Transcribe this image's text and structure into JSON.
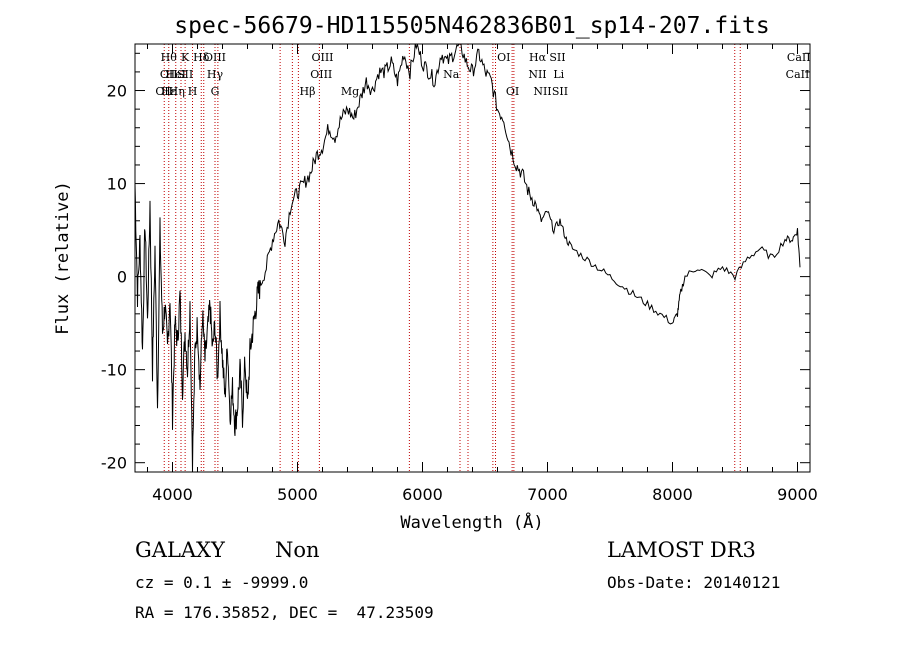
{
  "chart_data": {
    "type": "line",
    "title": "spec-56679-HD115505N462836B01_sp14-207.fits",
    "xlabel": "Wavelength (Å)",
    "ylabel": "Flux (relative)",
    "xlim": [
      3700,
      9100
    ],
    "ylim": [
      -21,
      25
    ],
    "xticks": [
      4000,
      5000,
      6000,
      7000,
      8000,
      9000
    ],
    "yticks": [
      -20,
      -10,
      0,
      10,
      20
    ],
    "grid": false,
    "series": [
      {
        "x": [
          3700,
          3720,
          3740,
          3760,
          3780,
          3800,
          3820,
          3840,
          3860,
          3880,
          3900,
          3920,
          3940,
          3960,
          3980,
          4000,
          4020,
          4040,
          4060,
          4080,
          4100,
          4120,
          4140,
          4160,
          4180,
          4200,
          4220,
          4240,
          4260,
          4280,
          4300,
          4320,
          4340,
          4360,
          4380,
          4400,
          4420,
          4440,
          4460,
          4480,
          4500,
          4520,
          4540,
          4560,
          4580,
          4600,
          4620,
          4640,
          4660,
          4680,
          4700,
          4750,
          4800,
          4850,
          4900,
          4950,
          5000,
          5050,
          5100,
          5150,
          5200,
          5250,
          5300,
          5350,
          5400,
          5450,
          5500,
          5550,
          5600,
          5650,
          5700,
          5750,
          5800,
          5850,
          5900,
          5950,
          6000,
          6050,
          6100,
          6150,
          6200,
          6250,
          6300,
          6350,
          6400,
          6450,
          6500,
          6550,
          6600,
          6650,
          6700,
          6750,
          6800,
          6850,
          6900,
          6950,
          7000,
          7050,
          7100,
          7150,
          7200,
          7300,
          7400,
          7500,
          7600,
          7700,
          7800,
          7900,
          8000,
          8040,
          8060,
          8100,
          8200,
          8300,
          8400,
          8500,
          8600,
          8700,
          8800,
          8900,
          8960,
          9000,
          9020
        ],
        "values": [
          10,
          -2,
          4,
          -8,
          6,
          -5,
          8,
          -10,
          3,
          -14,
          5,
          -6,
          -3,
          -8,
          -2,
          -15,
          -5,
          -7,
          -2,
          -12,
          -6,
          -10,
          -3,
          -20,
          -8,
          -5,
          -12,
          -4,
          -9,
          -6,
          -3,
          -8,
          -5,
          -11,
          -4,
          -9,
          -13,
          -7,
          -15,
          -12,
          -16,
          -14,
          -10,
          -15,
          -9,
          -14,
          -8,
          -6,
          -4,
          -2,
          -1,
          1,
          4,
          6,
          4,
          8,
          9,
          10,
          11,
          13,
          14,
          16,
          15,
          17,
          18,
          17,
          19,
          21,
          20,
          22,
          22,
          23,
          21,
          24,
          22,
          25,
          23,
          22,
          21,
          24,
          23,
          24,
          25,
          23,
          22,
          24,
          22,
          21,
          18,
          17,
          14,
          12,
          11,
          9,
          8,
          6,
          7,
          5,
          6,
          4,
          3,
          2,
          1,
          0,
          -1,
          -2,
          -3,
          -4,
          -5,
          -4,
          -2,
          0,
          1,
          0,
          1,
          0,
          2,
          3,
          2,
          4,
          4,
          5,
          1
        ]
      }
    ],
    "line_markers": {
      "top": [
        {
          "x": 3934,
          "row": 2,
          "label": "OII"
        },
        {
          "x": 3970,
          "row": 1,
          "label": "OII"
        },
        {
          "x": 3970,
          "row": 2,
          "label": "Hε"
        },
        {
          "x": 3970,
          "row": 0,
          "label": "Hθ"
        },
        {
          "x": 4026,
          "row": 1,
          "label": "HeI"
        },
        {
          "x": 4034,
          "row": 2,
          "label": "Hη"
        },
        {
          "x": 4101,
          "row": 0,
          "label": "K"
        },
        {
          "x": 4101,
          "row": 1,
          "label": "SII"
        },
        {
          "x": 4160,
          "row": 2,
          "label": "H"
        },
        {
          "x": 4230,
          "row": 0,
          "label": "Hδ"
        },
        {
          "x": 4340,
          "row": 0,
          "label": "OIII"
        },
        {
          "x": 4340,
          "row": 1,
          "label": "Hγ"
        },
        {
          "x": 4340,
          "row": 2,
          "label": "G"
        },
        {
          "x": 5080,
          "row": 2,
          "label": "Hβ"
        },
        {
          "x": 5200,
          "row": 0,
          "label": "OIII"
        },
        {
          "x": 5190,
          "row": 1,
          "label": "OIII"
        },
        {
          "x": 5420,
          "row": 2,
          "label": "Mg"
        },
        {
          "x": 6230,
          "row": 1,
          "label": "Na"
        },
        {
          "x": 6650,
          "row": 0,
          "label": "OI"
        },
        {
          "x": 6720,
          "row": 2,
          "label": "OI"
        },
        {
          "x": 6920,
          "row": 0,
          "label": "Hα"
        },
        {
          "x": 6920,
          "row": 1,
          "label": "NII"
        },
        {
          "x": 6960,
          "row": 2,
          "label": "NII"
        },
        {
          "x": 7080,
          "row": 0,
          "label": "SII"
        },
        {
          "x": 7090,
          "row": 1,
          "label": "Li"
        },
        {
          "x": 7100,
          "row": 2,
          "label": "SII"
        },
        {
          "x": 9010,
          "row": 0,
          "label": "CaII"
        },
        {
          "x": 9000,
          "row": 1,
          "label": "CaII"
        }
      ],
      "lines": [
        3934,
        3970,
        4026,
        4068,
        4101,
        4160,
        4230,
        4250,
        4340,
        4363,
        4861,
        4959,
        5007,
        5175,
        5895,
        6300,
        6364,
        6563,
        6584,
        6717,
        6731,
        8498,
        8542
      ]
    },
    "colors": {
      "spectrum": "#000000",
      "markers": "#c00000",
      "axes": "#000000"
    }
  },
  "info": {
    "object_type": "GALAXY",
    "subclass": "Non",
    "survey": "LAMOST DR3",
    "cz_line": "cz = 0.1 ± -9999.0",
    "obs_date": "Obs-Date: 20140121",
    "coords": "RA = 176.35852, DEC =  47.23509"
  }
}
